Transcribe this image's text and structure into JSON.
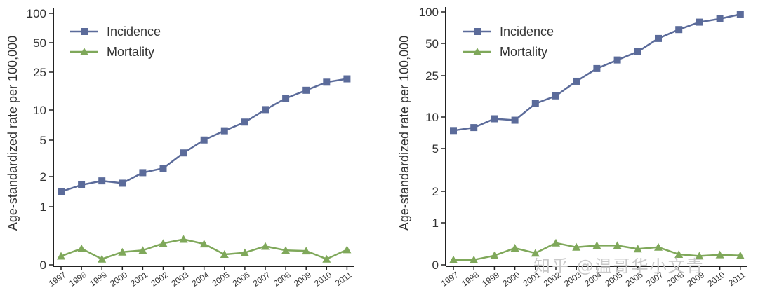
{
  "chart_data": [
    {
      "type": "line",
      "ylabel": "Age-standardized rate per 100,000",
      "xlabel": "",
      "y_scale": "log",
      "ytick_labels": [
        "0",
        "1",
        "2",
        "5",
        "10",
        "25",
        "50",
        "100"
      ],
      "categories": [
        "1997",
        "1998",
        "1999",
        "2000",
        "2001",
        "2002",
        "2003",
        "2004",
        "2005",
        "2006",
        "2007",
        "2008",
        "2009",
        "2010",
        "2011"
      ],
      "legend": {
        "position": "top-left"
      },
      "series": [
        {
          "name": "Incidence",
          "marker": "square",
          "color": "#5b6b9a",
          "values": [
            1.43,
            1.68,
            1.85,
            1.75,
            2.25,
            2.5,
            3.6,
            4.9,
            6.1,
            7.5,
            10.1,
            13.2,
            16.0,
            19.4,
            21.0
          ]
        },
        {
          "name": "Mortality",
          "marker": "triangle",
          "color": "#7fa85a",
          "values": [
            0.15,
            0.28,
            0.1,
            0.22,
            0.25,
            0.37,
            0.44,
            0.36,
            0.18,
            0.21,
            0.32,
            0.25,
            0.24,
            0.1,
            0.26
          ]
        }
      ]
    },
    {
      "type": "line",
      "ylabel": "Age-standardized rate per 100,000",
      "xlabel": "",
      "y_scale": "log",
      "ytick_labels": [
        "0",
        "1",
        "2",
        "5",
        "10",
        "25",
        "50",
        "100"
      ],
      "categories": [
        "1997",
        "1998",
        "1999",
        "2000",
        "2001",
        "2002",
        "2003",
        "2004",
        "2005",
        "2006",
        "2007",
        "2008",
        "2009",
        "2010",
        "2011"
      ],
      "legend": {
        "position": "top-left"
      },
      "series": [
        {
          "name": "Incidence",
          "marker": "square",
          "color": "#5b6b9a",
          "values": [
            7.5,
            8.0,
            9.7,
            9.4,
            13.5,
            16.0,
            22.0,
            29.0,
            35.0,
            42.0,
            56.0,
            68.0,
            80.0,
            86.0,
            95.0
          ]
        },
        {
          "name": "Mortality",
          "marker": "triangle",
          "color": "#7fa85a",
          "values": [
            0.12,
            0.12,
            0.22,
            0.4,
            0.28,
            0.52,
            0.42,
            0.46,
            0.46,
            0.38,
            0.42,
            0.25,
            0.21,
            0.24,
            0.22
          ]
        }
      ]
    }
  ],
  "watermark": "知乎 @温哥华小文青",
  "colors": {
    "axis": "#222222",
    "text": "#333333",
    "incidence": "#5b6b9a",
    "mortality": "#7fa85a"
  }
}
